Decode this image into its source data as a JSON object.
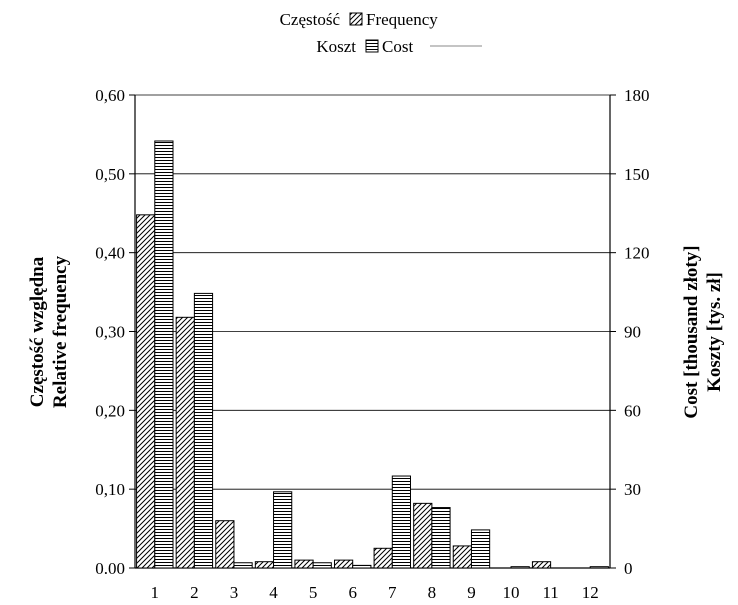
{
  "chart_data": {
    "type": "bar",
    "categories": [
      "1",
      "2",
      "3",
      "4",
      "5",
      "6",
      "7",
      "8",
      "9",
      "10",
      "11",
      "12"
    ],
    "series": [
      {
        "name": "Frequency",
        "name_pl": "Częstość",
        "axis": "left",
        "pattern": "diagonal-hatch",
        "values": [
          0.448,
          0.318,
          0.06,
          0.008,
          0.01,
          0.01,
          0.025,
          0.082,
          0.028,
          0.0,
          0.008,
          0.0
        ]
      },
      {
        "name": "Cost",
        "name_pl": "Koszt",
        "axis": "right",
        "pattern": "horizontal-lines",
        "values": [
          162.5,
          104.5,
          2.0,
          29.0,
          2.0,
          1.0,
          35.0,
          23.0,
          14.5,
          0.5,
          0.0,
          0.5
        ]
      }
    ],
    "y_left": {
      "label_line1": "Częstość względna",
      "label_line2": "Relative frequency",
      "ylim": [
        0,
        0.6
      ],
      "ticks": [
        {
          "value": 0,
          "label": "0.00"
        },
        {
          "value": 0.1,
          "label": "0,10"
        },
        {
          "value": 0.2,
          "label": "0,20"
        },
        {
          "value": 0.3,
          "label": "0,30"
        },
        {
          "value": 0.4,
          "label": "0,40"
        },
        {
          "value": 0.5,
          "label": "0,50"
        },
        {
          "value": 0.6,
          "label": "0,60"
        }
      ]
    },
    "y_right": {
      "label_line1": "Cost [thousand złoty]",
      "label_line2": "Koszty [tys. zł]",
      "ylim": [
        0,
        180
      ],
      "ticks": [
        {
          "value": 0,
          "label": "0"
        },
        {
          "value": 30,
          "label": "30"
        },
        {
          "value": 60,
          "label": "60"
        },
        {
          "value": 90,
          "label": "90"
        },
        {
          "value": 120,
          "label": "120"
        },
        {
          "value": 150,
          "label": "150"
        },
        {
          "value": 180,
          "label": "180"
        }
      ]
    },
    "grid": true,
    "legend_position": "top-center",
    "legend": [
      {
        "label_pl": "Częstość",
        "label_en": "Frequency",
        "pattern": "diagonal-hatch"
      },
      {
        "label_pl": "Koszt",
        "label_en": "Cost",
        "pattern": "horizontal-lines"
      }
    ]
  }
}
